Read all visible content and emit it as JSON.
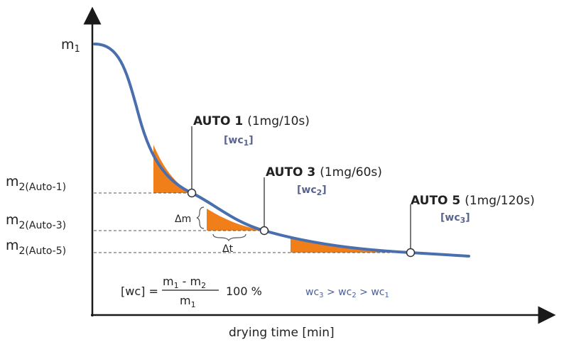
{
  "colors": {
    "curve": "#4a6fae",
    "fill": "#f07f1a",
    "axis": "#1a1a1a",
    "text": "#222222",
    "wc": "#5a6490"
  },
  "axis": {
    "y_top_label": "m",
    "y_top_sub": "1",
    "x_label": "drying time [min]"
  },
  "levels": [
    {
      "main": "m",
      "sub": "2(Auto-1)"
    },
    {
      "main": "m",
      "sub": "2(Auto-3)"
    },
    {
      "main": "m",
      "sub": "2(Auto-5)"
    }
  ],
  "points": [
    {
      "name": "AUTO 1",
      "rate": "(1mg/10s)",
      "wc_main": "[wc",
      "wc_sub": "1",
      "wc_close": "]"
    },
    {
      "name": "AUTO 3",
      "rate": "(1mg/60s)",
      "wc_main": "[wc",
      "wc_sub": "2",
      "wc_close": "]"
    },
    {
      "name": "AUTO 5",
      "rate": "(1mg/120s)",
      "wc_main": "[wc",
      "wc_sub": "3",
      "wc_close": "]"
    }
  ],
  "delta": {
    "dm": "Δm",
    "dt": "Δt"
  },
  "formula": {
    "lhs": "[wc] =",
    "num_a": "m",
    "num_a_sub": "1",
    "num_minus": " - ",
    "num_b": "m",
    "num_b_sub": "2",
    "den": "m",
    "den_sub": "1",
    "factor": "100 %"
  },
  "inequality": {
    "a": "wc",
    "a_sub": "3",
    "op1": " > ",
    "b": "wc",
    "b_sub": "2",
    "op2": " > ",
    "c": "wc",
    "c_sub": "1"
  }
}
